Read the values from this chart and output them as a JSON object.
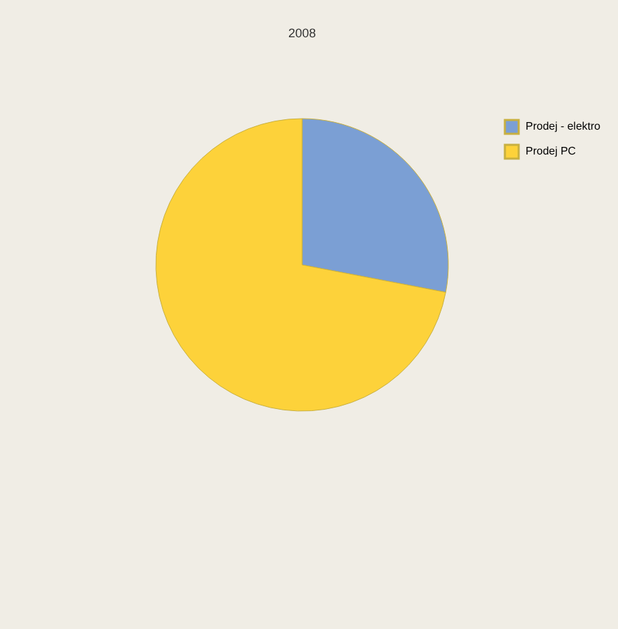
{
  "chart_data": {
    "type": "pie",
    "title": "2008",
    "categories": [
      "Prodej - elektro",
      "Prodej PC"
    ],
    "values": [
      28,
      72
    ],
    "colors": [
      "#7b9fd4",
      "#fdd23a"
    ],
    "legend": "right"
  }
}
